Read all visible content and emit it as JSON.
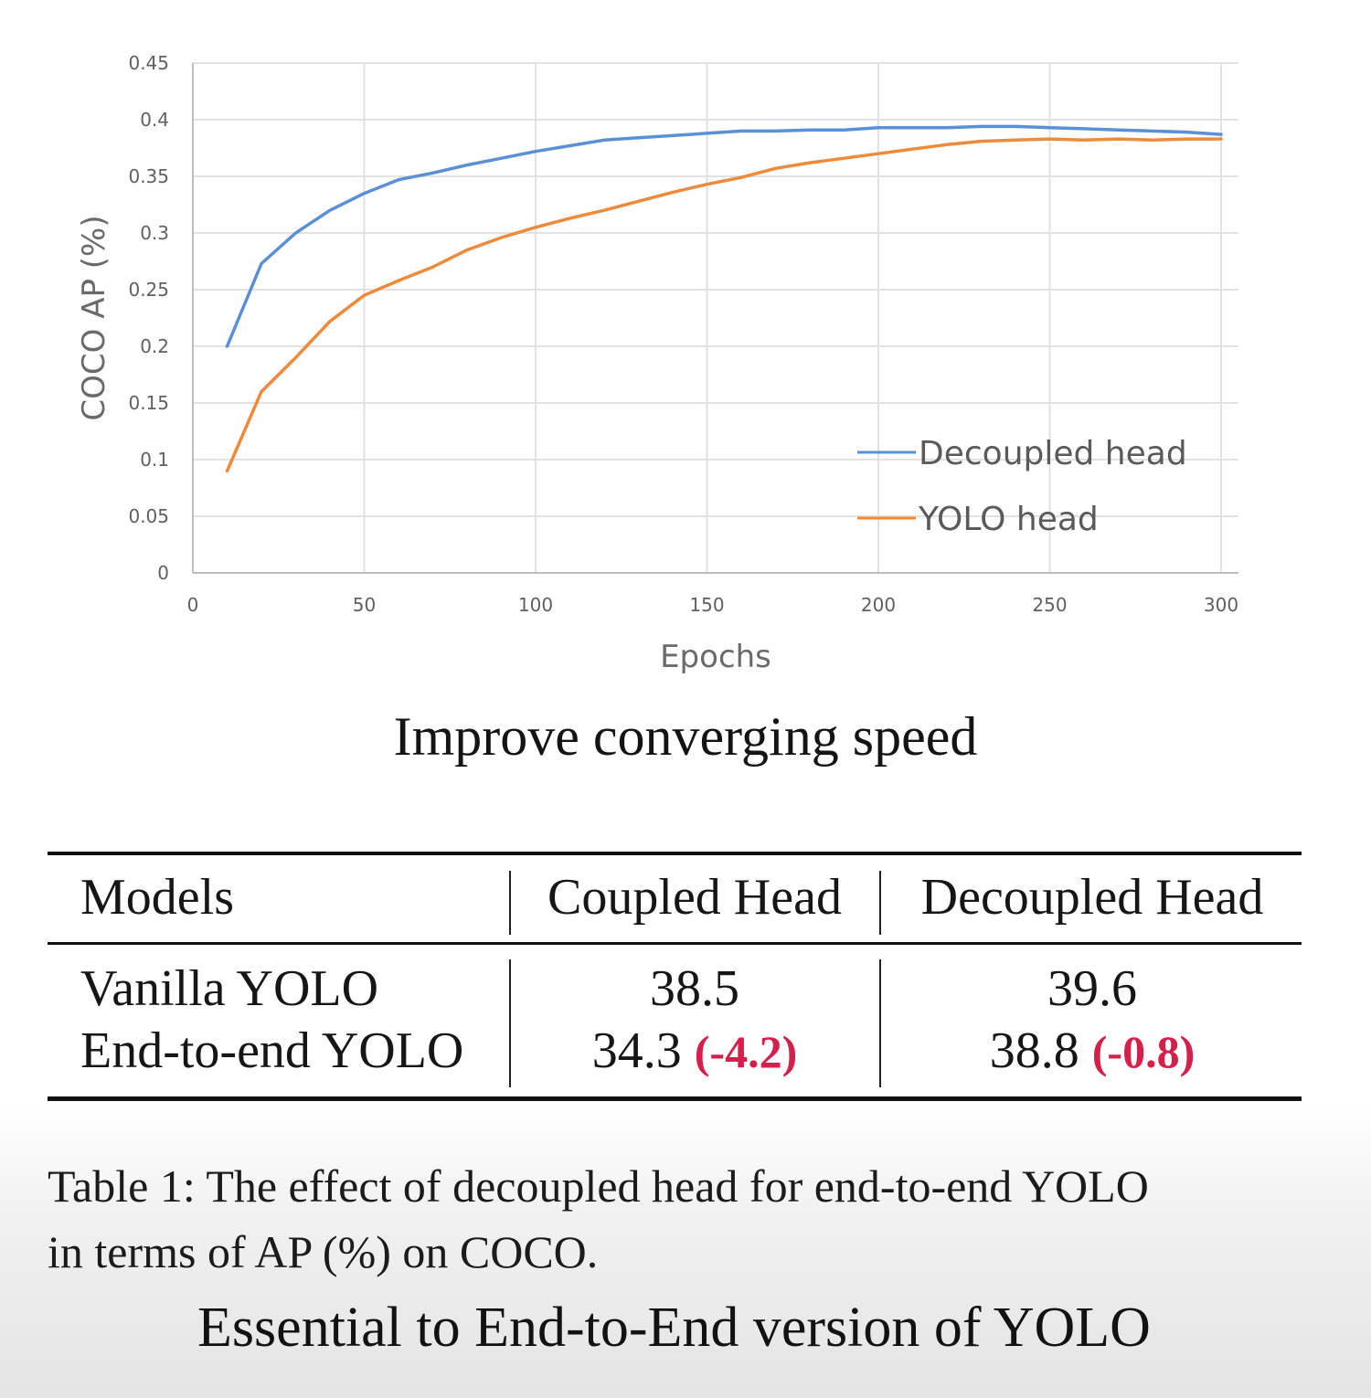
{
  "chart_data": {
    "type": "line",
    "xlabel": "Epochs",
    "ylabel": "COCO AP (%)",
    "xlim": [
      0,
      300
    ],
    "ylim": [
      0,
      0.45
    ],
    "x_ticks": [
      "0",
      "50",
      "100",
      "150",
      "200",
      "250",
      "300"
    ],
    "y_ticks": [
      "0",
      "0.05",
      "0.1",
      "0.15",
      "0.2",
      "0.25",
      "0.3",
      "0.35",
      "0.4",
      "0.45"
    ],
    "grid": true,
    "legend_position": "bottom-right",
    "series": [
      {
        "name": "Decoupled head",
        "color": "#5b8fd6",
        "x": [
          10,
          20,
          30,
          40,
          50,
          60,
          70,
          80,
          90,
          100,
          110,
          120,
          130,
          140,
          150,
          160,
          170,
          180,
          190,
          200,
          210,
          220,
          230,
          240,
          250,
          260,
          270,
          280,
          290,
          300
        ],
        "y": [
          0.2,
          0.273,
          0.3,
          0.32,
          0.335,
          0.347,
          0.353,
          0.36,
          0.366,
          0.372,
          0.377,
          0.382,
          0.384,
          0.386,
          0.388,
          0.39,
          0.39,
          0.391,
          0.391,
          0.393,
          0.393,
          0.393,
          0.394,
          0.394,
          0.393,
          0.392,
          0.391,
          0.39,
          0.389,
          0.387
        ]
      },
      {
        "name": "YOLO head",
        "color": "#ef8a3a",
        "x": [
          10,
          20,
          30,
          40,
          50,
          60,
          70,
          80,
          90,
          100,
          110,
          120,
          130,
          140,
          150,
          160,
          170,
          180,
          190,
          200,
          210,
          220,
          230,
          240,
          250,
          260,
          270,
          280,
          290,
          300
        ],
        "y": [
          0.09,
          0.16,
          0.19,
          0.222,
          0.245,
          0.258,
          0.27,
          0.285,
          0.296,
          0.305,
          0.313,
          0.32,
          0.328,
          0.336,
          0.343,
          0.349,
          0.357,
          0.362,
          0.366,
          0.37,
          0.374,
          0.378,
          0.381,
          0.382,
          0.383,
          0.382,
          0.383,
          0.382,
          0.383,
          0.383
        ]
      }
    ]
  },
  "figure_caption": "Improve converging speed",
  "table": {
    "headers": [
      "Models",
      "Coupled Head",
      "Decoupled Head"
    ],
    "rows": [
      {
        "model": "Vanilla YOLO",
        "coupled": "38.5",
        "coupled_delta": "",
        "decoupled": "39.6",
        "decoupled_delta": ""
      },
      {
        "model": "End-to-end YOLO",
        "coupled": "34.3",
        "coupled_delta": "(-4.2)",
        "decoupled": "38.8",
        "decoupled_delta": "(-0.8)"
      }
    ],
    "delta_color": "#d4204a"
  },
  "table_caption_line1": "Table 1: The effect of decoupled head for end-to-end YOLO",
  "table_caption_line2": "in terms of AP (%) on COCO.",
  "footer_title": "Essential to End-to-End version of YOLO"
}
